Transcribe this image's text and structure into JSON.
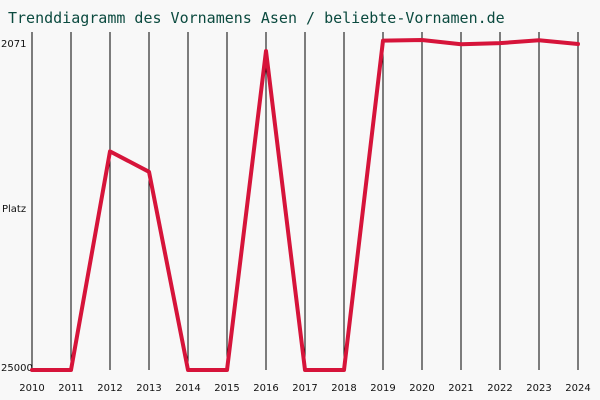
{
  "chart_data": {
    "type": "line",
    "title": "Trenddiagramm des Vornamens Asen / beliebte-Vornamen.de",
    "ylabel": "Platz",
    "x": [
      "2010",
      "2011",
      "2012",
      "2013",
      "2014",
      "2015",
      "2016",
      "2017",
      "2018",
      "2019",
      "2020",
      "2021",
      "2022",
      "2023",
      "2024"
    ],
    "series": [
      {
        "values": [
          25000,
          25000,
          4800,
          5600,
          25000,
          25000,
          2250,
          25000,
          25000,
          2080,
          2071,
          2140,
          2120,
          2075,
          2135
        ]
      }
    ],
    "yticks": [
      "2071",
      "25000"
    ],
    "ylim": [
      2071,
      25000
    ],
    "yscale": "log-like (rank, inverted: lower rank = higher on chart)",
    "grid": "vertical lines at each year",
    "colors": {
      "line": "#d6143a",
      "grid": "#000000",
      "title": "#0b4a3f",
      "background": "#f8f8f8"
    }
  }
}
